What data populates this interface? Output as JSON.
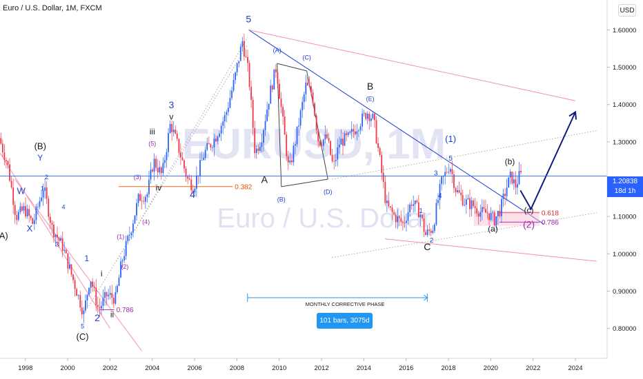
{
  "header": {
    "title": "Euro / U.S. Dollar, 1M, FXCM",
    "currency": "USD"
  },
  "watermark": {
    "symbol": "EURUSD, 1M",
    "name": "Euro / U.S. Dollar"
  },
  "price_tag": {
    "value": "1.20838",
    "countdown": "18d 1h"
  },
  "phase": {
    "label": "MONTHLY CORRECTIVE PHASE",
    "measure": "101 bars, 3075d"
  },
  "colors": {
    "up": "#2962ff",
    "down": "#f23645",
    "wave_blue": "#1e3fd1",
    "wave_purple": "#9c27b0",
    "fib_orange": "#e65100",
    "fib_red": "#d32f2f",
    "channel_red": "#f48fb1",
    "phase_box": "#2196f3"
  },
  "chart_data": {
    "type": "candlestick",
    "x_ticks": [
      "1998",
      "2000",
      "2002",
      "2004",
      "2006",
      "2008",
      "2010",
      "2012",
      "2014",
      "2016",
      "2018",
      "2020",
      "2022",
      "2024"
    ],
    "y_ticks": [
      "1.60000",
      "1.50000",
      "1.40000",
      "1.30000",
      "1.20000",
      "1.10000",
      "1.00000",
      "0.90000",
      "0.80000"
    ],
    "ylim": [
      0.72,
      1.68
    ],
    "xlim": [
      1996.8,
      2025.5
    ],
    "last_price": 1.20838,
    "close_series": [
      [
        1996.8,
        1.31
      ],
      [
        1997.2,
        1.24
      ],
      [
        1997.6,
        1.1
      ],
      [
        1998.0,
        1.12
      ],
      [
        1998.4,
        1.08
      ],
      [
        1998.9,
        1.18
      ],
      [
        1999.3,
        1.07
      ],
      [
        1999.8,
        1.02
      ],
      [
        2000.3,
        0.93
      ],
      [
        2000.8,
        0.84
      ],
      [
        2001.1,
        0.94
      ],
      [
        2001.5,
        0.85
      ],
      [
        2001.9,
        0.89
      ],
      [
        2002.3,
        0.88
      ],
      [
        2002.6,
        0.98
      ],
      [
        2003.0,
        1.06
      ],
      [
        2003.4,
        1.15
      ],
      [
        2003.8,
        1.16
      ],
      [
        2004.1,
        1.25
      ],
      [
        2004.5,
        1.21
      ],
      [
        2004.9,
        1.35
      ],
      [
        2005.3,
        1.28
      ],
      [
        2005.7,
        1.2
      ],
      [
        2006.0,
        1.18
      ],
      [
        2006.5,
        1.27
      ],
      [
        2007.0,
        1.31
      ],
      [
        2007.5,
        1.37
      ],
      [
        2007.9,
        1.46
      ],
      [
        2008.3,
        1.57
      ],
      [
        2008.6,
        1.48
      ],
      [
        2008.9,
        1.27
      ],
      [
        2009.2,
        1.31
      ],
      [
        2009.6,
        1.43
      ],
      [
        2009.9,
        1.5
      ],
      [
        2010.2,
        1.36
      ],
      [
        2010.5,
        1.22
      ],
      [
        2010.9,
        1.33
      ],
      [
        2011.3,
        1.45
      ],
      [
        2011.6,
        1.43
      ],
      [
        2011.9,
        1.3
      ],
      [
        2012.3,
        1.31
      ],
      [
        2012.6,
        1.23
      ],
      [
        2012.9,
        1.3
      ],
      [
        2013.3,
        1.31
      ],
      [
        2013.7,
        1.34
      ],
      [
        2014.2,
        1.38
      ],
      [
        2014.5,
        1.36
      ],
      [
        2014.8,
        1.25
      ],
      [
        2015.1,
        1.13
      ],
      [
        2015.5,
        1.1
      ],
      [
        2015.9,
        1.08
      ],
      [
        2016.3,
        1.14
      ],
      [
        2016.7,
        1.11
      ],
      [
        2016.95,
        1.05
      ],
      [
        2017.3,
        1.07
      ],
      [
        2017.7,
        1.19
      ],
      [
        2018.1,
        1.24
      ],
      [
        2018.4,
        1.17
      ],
      [
        2018.8,
        1.14
      ],
      [
        2019.2,
        1.13
      ],
      [
        2019.6,
        1.11
      ],
      [
        2019.9,
        1.11
      ],
      [
        2020.2,
        1.09
      ],
      [
        2020.5,
        1.12
      ],
      [
        2020.8,
        1.18
      ],
      [
        2021.0,
        1.21
      ],
      [
        2021.2,
        1.18
      ],
      [
        2021.4,
        1.21
      ]
    ],
    "lines": [
      {
        "name": "main-downtrend",
        "from": [
          2008.55,
          1.6
        ],
        "to": [
          2022.5,
          1.08
        ]
      },
      {
        "name": "upper-channel-red",
        "from": [
          2008.55,
          1.6
        ],
        "to": [
          2024.0,
          1.41
        ]
      },
      {
        "name": "lower-channel-red",
        "from": [
          2015.0,
          1.04
        ],
        "to": [
          2025.0,
          0.98
        ]
      },
      {
        "name": "dotted-upper",
        "from": [
          2012.5,
          1.2
        ],
        "to": [
          2025.0,
          1.33
        ]
      },
      {
        "name": "dotted-lower",
        "from": [
          2012.5,
          0.99
        ],
        "to": [
          2025.0,
          1.11
        ]
      },
      {
        "name": "early-channel-a",
        "from": [
          1996.8,
          1.27
        ],
        "to": [
          2002.0,
          0.8
        ]
      },
      {
        "name": "early-channel-b",
        "from": [
          1997.5,
          1.2
        ],
        "to": [
          2003.5,
          0.74
        ]
      },
      {
        "name": "dotted-diag",
        "from": [
          2001.0,
          0.86
        ],
        "to": [
          2008.5,
          1.56
        ]
      },
      {
        "name": "dotted-diag2",
        "from": [
          2002.3,
          0.98
        ],
        "to": [
          2008.5,
          1.58
        ]
      },
      {
        "name": "triangle-ac",
        "from": [
          2009.9,
          1.51
        ],
        "to": [
          2011.3,
          1.49
        ]
      },
      {
        "name": "triangle-bd",
        "from": [
          2010.1,
          1.18
        ],
        "to": [
          2012.3,
          1.2
        ]
      },
      {
        "name": "triangle-ab",
        "from": [
          2009.9,
          1.51
        ],
        "to": [
          2010.1,
          1.18
        ]
      },
      {
        "name": "triangle-cd",
        "from": [
          2011.3,
          1.49
        ],
        "to": [
          2012.3,
          1.2
        ]
      }
    ],
    "fibs": [
      {
        "label": "0.382",
        "value": 1.18,
        "from": 2002.4,
        "to": 2007.8
      },
      {
        "label": "0.786",
        "value": 0.85,
        "from": 2001.5,
        "to": 2002.2
      },
      {
        "label": "0.618",
        "value": 1.11,
        "from": 2020.4,
        "to": 2022.3
      },
      {
        "label": "0.786",
        "value": 1.085,
        "from": 2020.4,
        "to": 2022.3
      }
    ],
    "target_zone": {
      "x0": 2019.2,
      "x1": 2022.3,
      "y0": 1.075,
      "y1": 1.115
    },
    "projection": [
      [
        2021.4,
        1.17
      ],
      [
        2021.9,
        1.12
      ],
      [
        2024.0,
        1.38
      ]
    ],
    "phase_range": [
      2008.5,
      2017.0
    ],
    "wave_labels": [
      {
        "t": "5",
        "x": 2008.55,
        "y": 1.62,
        "c": "wave_blue",
        "s": 14
      },
      {
        "t": "(A)",
        "x": 2009.9,
        "y": 1.54,
        "c": "wave_blue",
        "s": 9
      },
      {
        "t": "(C)",
        "x": 2011.3,
        "y": 1.52,
        "c": "wave_blue",
        "s": 9
      },
      {
        "t": "B",
        "x": 2014.3,
        "y": 1.44,
        "c": "black",
        "s": 14
      },
      {
        "t": "(E)",
        "x": 2014.3,
        "y": 1.41,
        "c": "wave_blue",
        "s": 9
      },
      {
        "t": "A",
        "x": 2009.3,
        "y": 1.19,
        "c": "black",
        "s": 14
      },
      {
        "t": "(B)",
        "x": 2010.1,
        "y": 1.14,
        "c": "wave_blue",
        "s": 9
      },
      {
        "t": "(D)",
        "x": 2012.3,
        "y": 1.16,
        "c": "wave_blue",
        "s": 9
      },
      {
        "t": "(1)",
        "x": 2018.1,
        "y": 1.3,
        "c": "wave_blue",
        "s": 13
      },
      {
        "t": "5",
        "x": 2018.1,
        "y": 1.25,
        "c": "wave_blue",
        "s": 10
      },
      {
        "t": "3",
        "x": 2017.4,
        "y": 1.21,
        "c": "wave_blue",
        "s": 10
      },
      {
        "t": "4",
        "x": 2017.6,
        "y": 1.15,
        "c": "wave_blue",
        "s": 10
      },
      {
        "t": "1",
        "x": 2016.7,
        "y": 1.11,
        "c": "wave_blue",
        "s": 10
      },
      {
        "t": "2",
        "x": 2017.2,
        "y": 1.03,
        "c": "wave_blue",
        "s": 10
      },
      {
        "t": "C",
        "x": 2017.0,
        "y": 1.01,
        "c": "black",
        "s": 14
      },
      {
        "t": "(b)",
        "x": 2020.9,
        "y": 1.24,
        "c": "black",
        "s": 12
      },
      {
        "t": "(a)",
        "x": 2020.1,
        "y": 1.06,
        "c": "black",
        "s": 12
      },
      {
        "t": "(c)",
        "x": 2021.8,
        "y": 1.11,
        "c": "black",
        "s": 12
      },
      {
        "t": "(2)",
        "x": 2021.8,
        "y": 1.07,
        "c": "wave_purple",
        "s": 14
      },
      {
        "t": "(B)",
        "x": 1998.7,
        "y": 1.28,
        "c": "black",
        "s": 13
      },
      {
        "t": "Y",
        "x": 1998.7,
        "y": 1.25,
        "c": "wave_blue",
        "s": 12
      },
      {
        "t": "2",
        "x": 1999.0,
        "y": 1.2,
        "c": "wave_blue",
        "s": 9
      },
      {
        "t": "1",
        "x": 1998.8,
        "y": 1.17,
        "c": "wave_blue",
        "s": 9
      },
      {
        "t": "W",
        "x": 1997.8,
        "y": 1.16,
        "c": "wave_blue",
        "s": 13
      },
      {
        "t": "X",
        "x": 1998.2,
        "y": 1.06,
        "c": "wave_blue",
        "s": 13
      },
      {
        "t": "(A)",
        "x": 1996.9,
        "y": 1.04,
        "c": "black",
        "s": 13
      },
      {
        "t": "4",
        "x": 1999.8,
        "y": 1.12,
        "c": "wave_blue",
        "s": 9
      },
      {
        "t": "3",
        "x": 1999.5,
        "y": 1.02,
        "c": "wave_blue",
        "s": 9
      },
      {
        "t": "1",
        "x": 2000.9,
        "y": 0.98,
        "c": "wave_blue",
        "s": 12
      },
      {
        "t": "i",
        "x": 2001.6,
        "y": 0.94,
        "c": "black",
        "s": 12
      },
      {
        "t": "5",
        "x": 2000.7,
        "y": 0.8,
        "c": "wave_blue",
        "s": 9
      },
      {
        "t": "2",
        "x": 2001.4,
        "y": 0.82,
        "c": "wave_blue",
        "s": 14
      },
      {
        "t": "ii",
        "x": 2002.1,
        "y": 0.83,
        "c": "black",
        "s": 12
      },
      {
        "t": "(C)",
        "x": 2000.7,
        "y": 0.77,
        "c": "black",
        "s": 13
      },
      {
        "t": "(1)",
        "x": 2002.5,
        "y": 1.04,
        "c": "wave_purple",
        "s": 9
      },
      {
        "t": "(2)",
        "x": 2002.7,
        "y": 0.96,
        "c": "wave_purple",
        "s": 9
      },
      {
        "t": "(3)",
        "x": 2003.3,
        "y": 1.2,
        "c": "wave_purple",
        "s": 9
      },
      {
        "t": "(4)",
        "x": 2003.7,
        "y": 1.08,
        "c": "wave_purple",
        "s": 9
      },
      {
        "t": "(5)",
        "x": 2004.0,
        "y": 1.29,
        "c": "wave_purple",
        "s": 9
      },
      {
        "t": "iii",
        "x": 2004.0,
        "y": 1.32,
        "c": "black",
        "s": 12
      },
      {
        "t": "iv",
        "x": 2004.3,
        "y": 1.17,
        "c": "black",
        "s": 12
      },
      {
        "t": "3",
        "x": 2004.9,
        "y": 1.39,
        "c": "wave_blue",
        "s": 14
      },
      {
        "t": "v",
        "x": 2004.9,
        "y": 1.36,
        "c": "black",
        "s": 12
      },
      {
        "t": "4",
        "x": 2005.9,
        "y": 1.15,
        "c": "wave_blue",
        "s": 14
      }
    ]
  }
}
